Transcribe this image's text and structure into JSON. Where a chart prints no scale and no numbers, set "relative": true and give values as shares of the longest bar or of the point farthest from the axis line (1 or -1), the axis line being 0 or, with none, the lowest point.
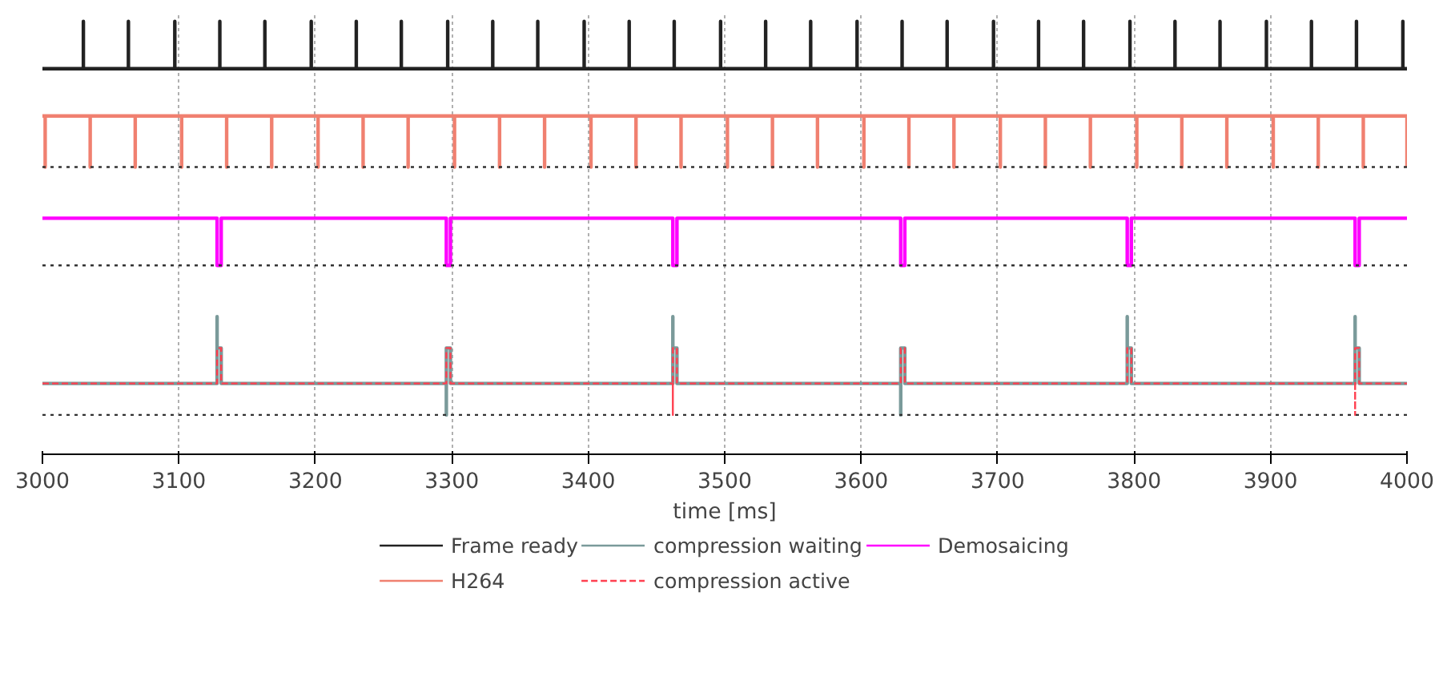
{
  "chart_data": {
    "type": "line",
    "relative": true,
    "xlabel": "time [ms]",
    "xlim": [
      3000,
      4000
    ],
    "xticks": [
      3000,
      3100,
      3200,
      3300,
      3400,
      3500,
      3600,
      3700,
      3800,
      3900,
      4000
    ],
    "grid": "x",
    "legend": "bottom",
    "tick_labels": "x",
    "line_style": "solid",
    "series": [
      {
        "name": "Frame ready",
        "color": "#222222",
        "x": [
          3000,
          3030,
          3030,
          3030,
          3063,
          3063,
          3063,
          3097,
          3097,
          3097,
          3130,
          3130,
          3130,
          3163,
          3163,
          3163,
          3197,
          3197,
          3197,
          3230,
          3230,
          3230,
          3263,
          3263,
          3263,
          3297,
          3297,
          3297,
          3330,
          3330,
          3330,
          3363,
          3363,
          3363,
          3397,
          3397,
          3397,
          3430,
          3430,
          3430,
          3463,
          3463,
          3463,
          3497,
          3497,
          3497,
          3530,
          3530,
          3530,
          3563,
          3563,
          3563,
          3597,
          3597,
          3597,
          3630,
          3630,
          3630,
          3663,
          3663,
          3663,
          3697,
          3697,
          3697,
          3730,
          3730,
          3730,
          3763,
          3763,
          3763,
          3797,
          3797,
          3797,
          3830,
          3830,
          3830,
          3863,
          3863,
          3863,
          3897,
          3897,
          3897,
          3930,
          3930,
          3930,
          3963,
          3963,
          3963,
          3997,
          3997,
          3997,
          4000
        ],
        "values": [
          0.88,
          0.88,
          1,
          0.88,
          0.88,
          1,
          0.88,
          0.88,
          1,
          0.88,
          0.88,
          1,
          0.88,
          0.88,
          1,
          0.88,
          0.88,
          1,
          0.88,
          0.88,
          1,
          0.88,
          0.88,
          1,
          0.88,
          0.88,
          1,
          0.88,
          0.88,
          1,
          0.88,
          0.88,
          1,
          0.88,
          0.88,
          1,
          0.88,
          0.88,
          1,
          0.88,
          0.88,
          1,
          0.88,
          0.88,
          1,
          0.88,
          0.88,
          1,
          0.88,
          0.88,
          1,
          0.88,
          0.88,
          1,
          0.88,
          0.88,
          1,
          0.88,
          0.88,
          1,
          0.88,
          0.88,
          1,
          0.88,
          0.88,
          1,
          0.88,
          0.88,
          1,
          0.88,
          0.88,
          1,
          0.88,
          0.88,
          1,
          0.88,
          0.88,
          1,
          0.88,
          0.88,
          1,
          0.88,
          0.88,
          1,
          0.88,
          0.88,
          1,
          0.88,
          0.88,
          1,
          0.88,
          0.88
        ]
      },
      {
        "name": "H264",
        "color": "#f08070",
        "x": [
          3000,
          3002,
          3002,
          3002,
          3035,
          3035,
          3035,
          3068,
          3068,
          3068,
          3102,
          3102,
          3102,
          3135,
          3135,
          3135,
          3168,
          3168,
          3168,
          3202,
          3202,
          3202,
          3235,
          3235,
          3235,
          3268,
          3268,
          3268,
          3302,
          3302,
          3302,
          3335,
          3335,
          3335,
          3368,
          3368,
          3368,
          3402,
          3402,
          3402,
          3435,
          3435,
          3435,
          3468,
          3468,
          3468,
          3502,
          3502,
          3502,
          3535,
          3535,
          3535,
          3568,
          3568,
          3568,
          3602,
          3602,
          3602,
          3635,
          3635,
          3635,
          3668,
          3668,
          3668,
          3702,
          3702,
          3702,
          3735,
          3735,
          3735,
          3768,
          3768,
          3768,
          3802,
          3802,
          3802,
          3835,
          3835,
          3835,
          3868,
          3868,
          3868,
          3902,
          3902,
          3902,
          3935,
          3935,
          3935,
          3968,
          3968,
          3968,
          4000,
          4000
        ],
        "values": [
          0.76,
          0.76,
          0.63,
          0.76,
          0.76,
          0.63,
          0.76,
          0.76,
          0.63,
          0.76,
          0.76,
          0.63,
          0.76,
          0.76,
          0.63,
          0.76,
          0.76,
          0.63,
          0.76,
          0.76,
          0.63,
          0.76,
          0.76,
          0.63,
          0.76,
          0.76,
          0.63,
          0.76,
          0.76,
          0.63,
          0.76,
          0.76,
          0.63,
          0.76,
          0.76,
          0.63,
          0.76,
          0.76,
          0.63,
          0.76,
          0.76,
          0.63,
          0.76,
          0.76,
          0.63,
          0.76,
          0.76,
          0.63,
          0.76,
          0.76,
          0.63,
          0.76,
          0.76,
          0.63,
          0.76,
          0.76,
          0.63,
          0.76,
          0.76,
          0.63,
          0.76,
          0.76,
          0.63,
          0.76,
          0.76,
          0.63,
          0.76,
          0.76,
          0.63,
          0.76,
          0.76,
          0.63,
          0.76,
          0.76,
          0.63,
          0.76,
          0.76,
          0.63,
          0.76,
          0.76,
          0.63,
          0.76,
          0.76,
          0.63,
          0.76,
          0.76,
          0.63,
          0.76,
          0.76,
          0.63,
          0.76,
          0.76,
          0.63
        ]
      },
      {
        "name": "compression waiting",
        "color": "#7a9a9a",
        "x": [
          3000,
          3128,
          3128,
          3128,
          3131,
          3131,
          3296,
          3296,
          3296,
          3299,
          3299,
          3462,
          3462,
          3462,
          3465,
          3465,
          3629,
          3629,
          3629,
          3632,
          3632,
          3795,
          3795,
          3795,
          3798,
          3798,
          3962,
          3962,
          3962,
          3965,
          3965,
          4000
        ],
        "values": [
          0.08,
          0.08,
          0.25,
          0.17,
          0.17,
          0.08,
          0.08,
          0,
          0.17,
          0.17,
          0.08,
          0.08,
          0.25,
          0.17,
          0.17,
          0.08,
          0.08,
          0,
          0.17,
          0.17,
          0.08,
          0.08,
          0.25,
          0.17,
          0.17,
          0.08,
          0.08,
          0.25,
          0.17,
          0.17,
          0.08,
          0.08
        ]
      },
      {
        "name": "compression active",
        "color": "#ff4050",
        "line_style": "dashed",
        "x": [
          3000,
          3128,
          3128,
          3131,
          3131,
          3296,
          3296,
          3299,
          3299,
          3462,
          3462,
          3462,
          3465,
          3465,
          3629,
          3629,
          3632,
          3632,
          3795,
          3795,
          3798,
          3798,
          3962,
          3962,
          3962,
          3965,
          3965,
          4000
        ],
        "values": [
          0.08,
          0.08,
          0.17,
          0.17,
          0.08,
          0.08,
          0.17,
          0.17,
          0.08,
          0.08,
          0,
          0.17,
          0.17,
          0.08,
          0.08,
          0.17,
          0.17,
          0.08,
          0.08,
          0.17,
          0.17,
          0.08,
          0.08,
          0,
          0.17,
          0.17,
          0.08,
          0.08
        ]
      },
      {
        "name": "Demosaicing",
        "color": "#ff00ff",
        "x": [
          3000,
          3128,
          3128,
          3131,
          3131,
          3296,
          3296,
          3299,
          3299,
          3462,
          3462,
          3465,
          3465,
          3629,
          3629,
          3632,
          3632,
          3795,
          3795,
          3798,
          3798,
          3962,
          3962,
          3965,
          3965,
          4000
        ],
        "values": [
          0.5,
          0.5,
          0.38,
          0.38,
          0.5,
          0.5,
          0.38,
          0.38,
          0.5,
          0.5,
          0.38,
          0.38,
          0.5,
          0.5,
          0.38,
          0.38,
          0.5,
          0.5,
          0.38,
          0.38,
          0.5,
          0.5,
          0.38,
          0.38,
          0.5,
          0.5
        ]
      },
      {
        "color": "#333333",
        "line_style": "dotted",
        "x": [
          3000,
          4000
        ],
        "values": [
          0.63,
          0.63
        ]
      },
      {
        "color": "#333333",
        "line_style": "dotted",
        "x": [
          3000,
          4000
        ],
        "values": [
          0.38,
          0.38
        ]
      },
      {
        "color": "#333333",
        "line_style": "dotted",
        "x": [
          3000,
          4000
        ],
        "values": [
          0,
          0
        ]
      }
    ]
  }
}
